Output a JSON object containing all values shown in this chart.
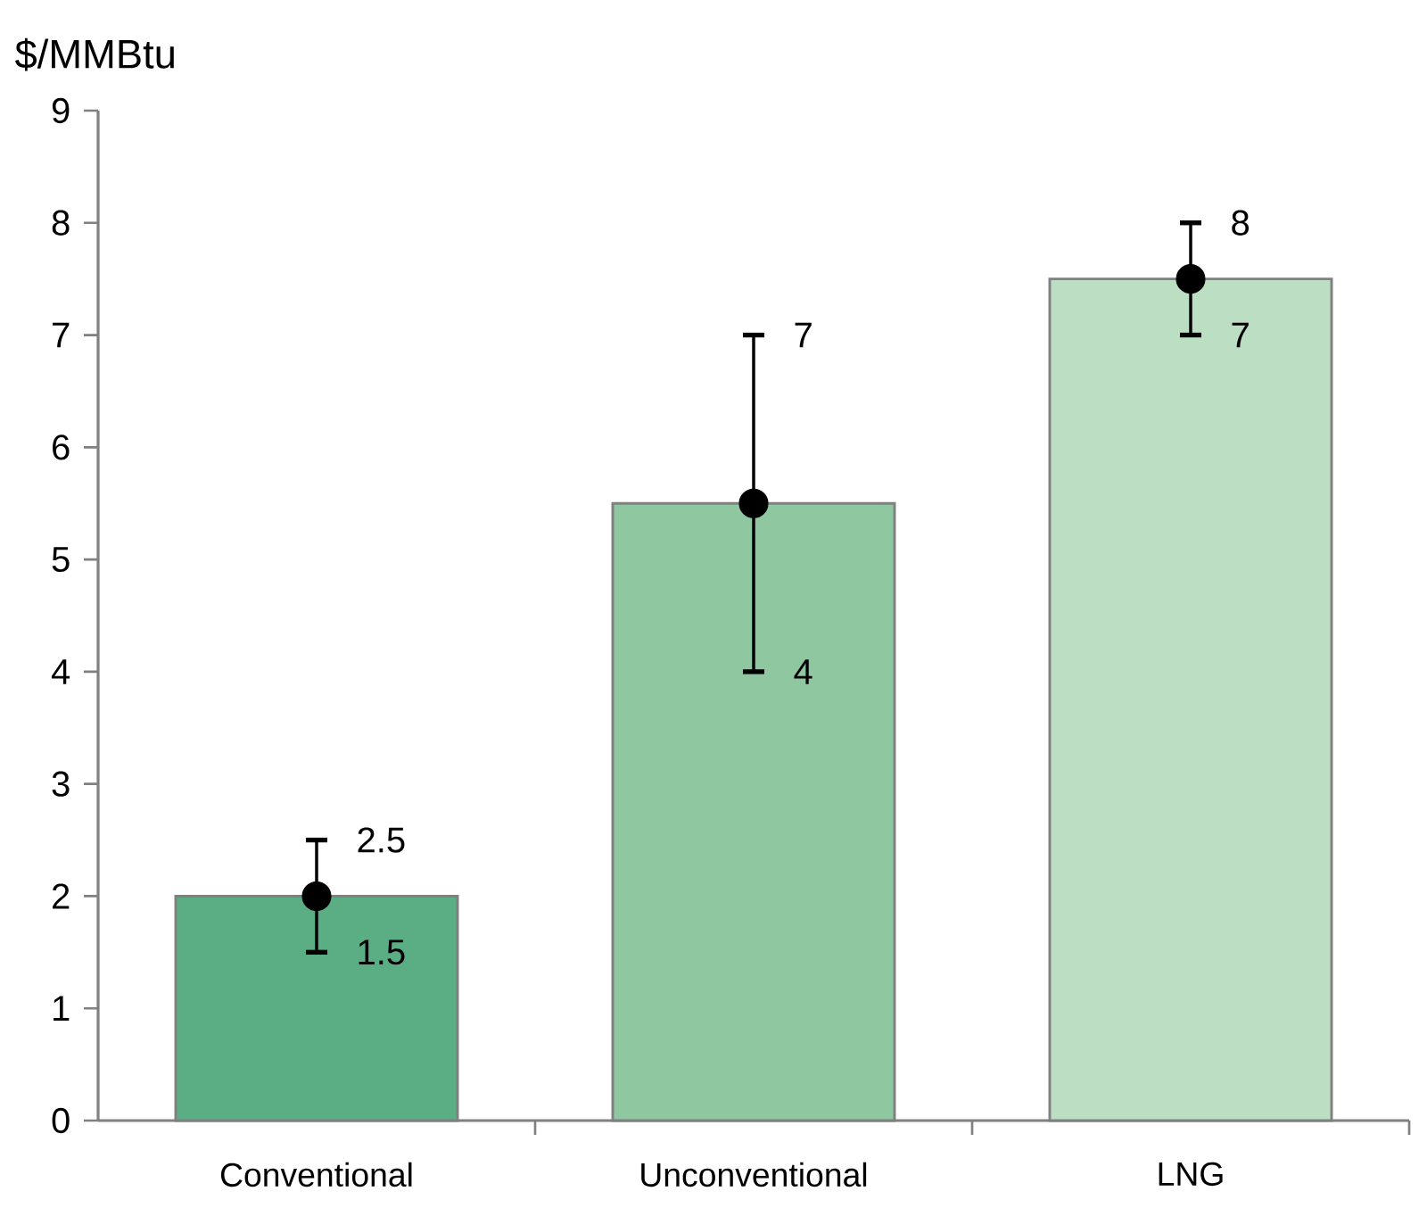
{
  "chart_data": {
    "type": "bar",
    "ylabel": "$/MMBtu",
    "categories": [
      "Conventional",
      "Unconventional",
      "LNG"
    ],
    "series": [
      {
        "type": "bar",
        "values": [
          2,
          5.5,
          7.5
        ],
        "colors": [
          "#5bae84",
          "#8fc7a0",
          "#bcdfc4"
        ]
      },
      {
        "type": "scatter",
        "values": [
          2,
          5.5,
          7.5
        ],
        "errors": [
          0.5,
          1.5,
          0.5
        ],
        "color": "#000000",
        "marker": "circle"
      }
    ],
    "ylim": [
      0,
      9
    ],
    "yticks": [
      0,
      1,
      2,
      3,
      4,
      5,
      6,
      7,
      8,
      9
    ],
    "grid": false,
    "annotations": [
      {
        "text": "2.5",
        "x": "Conventional",
        "y": 2.5
      },
      {
        "text": "1.5",
        "x": "Conventional",
        "y": 1.5
      },
      {
        "text": "7",
        "x": "Unconventional",
        "y": 7
      },
      {
        "text": "4",
        "x": "Unconventional",
        "y": 4
      },
      {
        "text": "8",
        "x": "LNG",
        "y": 8
      },
      {
        "text": "7",
        "x": "LNG",
        "y": 7
      }
    ]
  }
}
